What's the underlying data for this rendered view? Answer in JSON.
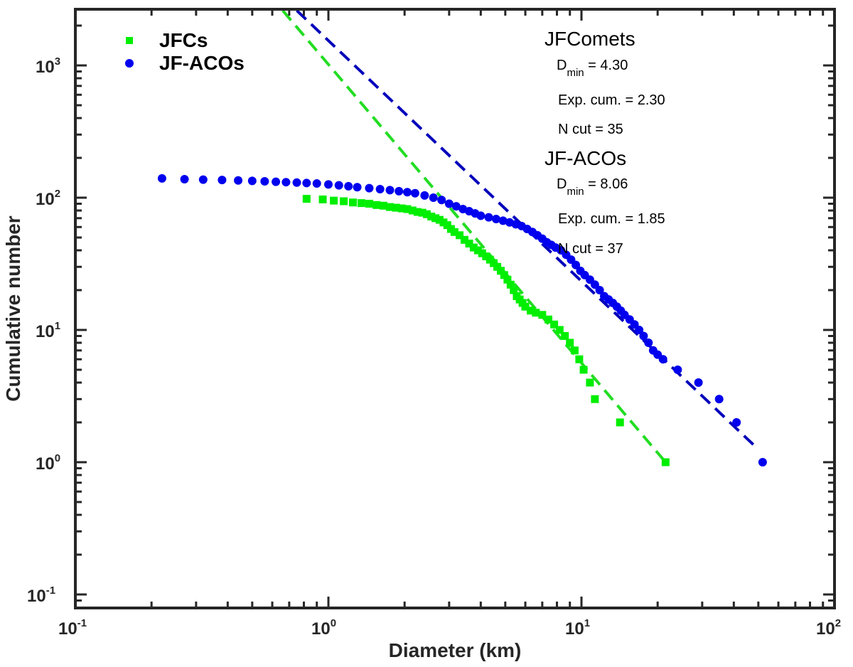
{
  "chart_data": {
    "type": "scatter",
    "xscale": "log",
    "yscale": "log",
    "xlim": [
      0.1,
      100
    ],
    "ylim": [
      0.08,
      2600
    ],
    "xlabel": "Diameter (km)",
    "ylabel": "Cumulative number",
    "x_ticks": [
      {
        "value": 0.1,
        "base": "10",
        "exp": "-1"
      },
      {
        "value": 1,
        "base": "10",
        "exp": "0"
      },
      {
        "value": 10,
        "base": "10",
        "exp": "1"
      },
      {
        "value": 100,
        "base": "10",
        "exp": "2"
      }
    ],
    "y_ticks": [
      {
        "value": 0.1,
        "base": "10",
        "exp": "-1"
      },
      {
        "value": 1,
        "base": "10",
        "exp": "0"
      },
      {
        "value": 10,
        "base": "10",
        "exp": "1"
      },
      {
        "value": 100,
        "base": "10",
        "exp": "2"
      },
      {
        "value": 1000,
        "base": "10",
        "exp": "3"
      }
    ],
    "legend": {
      "location": "top-left"
    },
    "series": [
      {
        "name": "JFCs",
        "marker": "square",
        "color": "#00ee00",
        "points": [
          [
            0.82,
            98
          ],
          [
            0.95,
            97
          ],
          [
            1.05,
            95
          ],
          [
            1.15,
            94
          ],
          [
            1.25,
            92
          ],
          [
            1.35,
            91
          ],
          [
            1.45,
            90
          ],
          [
            1.55,
            88
          ],
          [
            1.65,
            87
          ],
          [
            1.75,
            85
          ],
          [
            1.85,
            84
          ],
          [
            1.95,
            83
          ],
          [
            2.05,
            82
          ],
          [
            2.15,
            80
          ],
          [
            2.25,
            78
          ],
          [
            2.35,
            77
          ],
          [
            2.45,
            75
          ],
          [
            2.55,
            72
          ],
          [
            2.65,
            70
          ],
          [
            2.75,
            68
          ],
          [
            2.85,
            65
          ],
          [
            2.95,
            62
          ],
          [
            3.05,
            58
          ],
          [
            3.15,
            55
          ],
          [
            3.3,
            52
          ],
          [
            3.45,
            48
          ],
          [
            3.6,
            45
          ],
          [
            3.75,
            42
          ],
          [
            3.9,
            40
          ],
          [
            4.05,
            38
          ],
          [
            4.2,
            36
          ],
          [
            4.35,
            34
          ],
          [
            4.5,
            32
          ],
          [
            4.65,
            30
          ],
          [
            4.8,
            28
          ],
          [
            4.95,
            26
          ],
          [
            5.1,
            24
          ],
          [
            5.25,
            22
          ],
          [
            5.4,
            20
          ],
          [
            5.55,
            18
          ],
          [
            5.7,
            17
          ],
          [
            5.85,
            16
          ],
          [
            6.0,
            15
          ],
          [
            6.3,
            14
          ],
          [
            6.6,
            13.5
          ],
          [
            7.0,
            13
          ],
          [
            7.4,
            12
          ],
          [
            7.8,
            11
          ],
          [
            8.2,
            10
          ],
          [
            8.6,
            9
          ],
          [
            9.0,
            8
          ],
          [
            9.4,
            7
          ],
          [
            9.8,
            6
          ],
          [
            10.2,
            5
          ],
          [
            10.8,
            4
          ],
          [
            11.3,
            3
          ],
          [
            14.2,
            2
          ],
          [
            21.5,
            1
          ]
        ]
      },
      {
        "name": "JF-ACOs",
        "marker": "circle",
        "color": "#0000ee",
        "points": [
          [
            0.22,
            140
          ],
          [
            0.27,
            138
          ],
          [
            0.32,
            137
          ],
          [
            0.38,
            136
          ],
          [
            0.44,
            135
          ],
          [
            0.5,
            134
          ],
          [
            0.56,
            133
          ],
          [
            0.62,
            132
          ],
          [
            0.68,
            131
          ],
          [
            0.75,
            130
          ],
          [
            0.82,
            129
          ],
          [
            0.9,
            128
          ],
          [
            1.0,
            126
          ],
          [
            1.1,
            124
          ],
          [
            1.2,
            122
          ],
          [
            1.3,
            120
          ],
          [
            1.45,
            118
          ],
          [
            1.6,
            116
          ],
          [
            1.75,
            114
          ],
          [
            1.9,
            112
          ],
          [
            2.05,
            110
          ],
          [
            2.2,
            108
          ],
          [
            2.4,
            104
          ],
          [
            2.6,
            100
          ],
          [
            2.8,
            96
          ],
          [
            3.0,
            90
          ],
          [
            3.2,
            86
          ],
          [
            3.4,
            82
          ],
          [
            3.6,
            79
          ],
          [
            3.8,
            76
          ],
          [
            4.0,
            73
          ],
          [
            4.3,
            71
          ],
          [
            4.6,
            69
          ],
          [
            4.9,
            67
          ],
          [
            5.2,
            65
          ],
          [
            5.5,
            63
          ],
          [
            5.8,
            61
          ],
          [
            6.1,
            58
          ],
          [
            6.4,
            55
          ],
          [
            6.7,
            52
          ],
          [
            7.0,
            49
          ],
          [
            7.3,
            46
          ],
          [
            7.6,
            44
          ],
          [
            7.9,
            42
          ],
          [
            8.3,
            40
          ],
          [
            8.7,
            37
          ],
          [
            9.1,
            34
          ],
          [
            9.5,
            31
          ],
          [
            9.9,
            28
          ],
          [
            10.3,
            26
          ],
          [
            10.8,
            24
          ],
          [
            11.3,
            22
          ],
          [
            11.8,
            20
          ],
          [
            12.3,
            18
          ],
          [
            12.8,
            17
          ],
          [
            13.3,
            16
          ],
          [
            13.8,
            15
          ],
          [
            14.3,
            14
          ],
          [
            14.8,
            13
          ],
          [
            15.5,
            12
          ],
          [
            16.2,
            11
          ],
          [
            16.9,
            10
          ],
          [
            17.6,
            9
          ],
          [
            18.4,
            8
          ],
          [
            19.2,
            7
          ],
          [
            20.0,
            6.5
          ],
          [
            21.0,
            6
          ],
          [
            24.0,
            5
          ],
          [
            29.0,
            4
          ],
          [
            35.0,
            3
          ],
          [
            41.0,
            2
          ],
          [
            52.0,
            1
          ]
        ]
      }
    ],
    "fit_lines": [
      {
        "name": "JFComets fit",
        "color": "#22dd22",
        "style": "dashed",
        "points": [
          [
            0.66,
            2600
          ],
          [
            21.5,
            1
          ]
        ]
      },
      {
        "name": "JF-ACOs fit",
        "color": "#0000bb",
        "style": "dashed",
        "points": [
          [
            0.75,
            2600
          ],
          [
            50.0,
            1.25
          ]
        ]
      }
    ],
    "annotations": [
      {
        "title": "JFComets",
        "dmin_label": "D",
        "dmin_sub": "min",
        "dmin_value": " = 4.30",
        "exp_line": "Exp. cum. = 2.30",
        "ncut_line": "N cut = 35"
      },
      {
        "title": "JF-ACOs",
        "dmin_label": "D",
        "dmin_sub": "min",
        "dmin_value": " = 8.06",
        "exp_line": "Exp. cum. = 1.85",
        "ncut_line": "N cut = 37"
      }
    ]
  }
}
